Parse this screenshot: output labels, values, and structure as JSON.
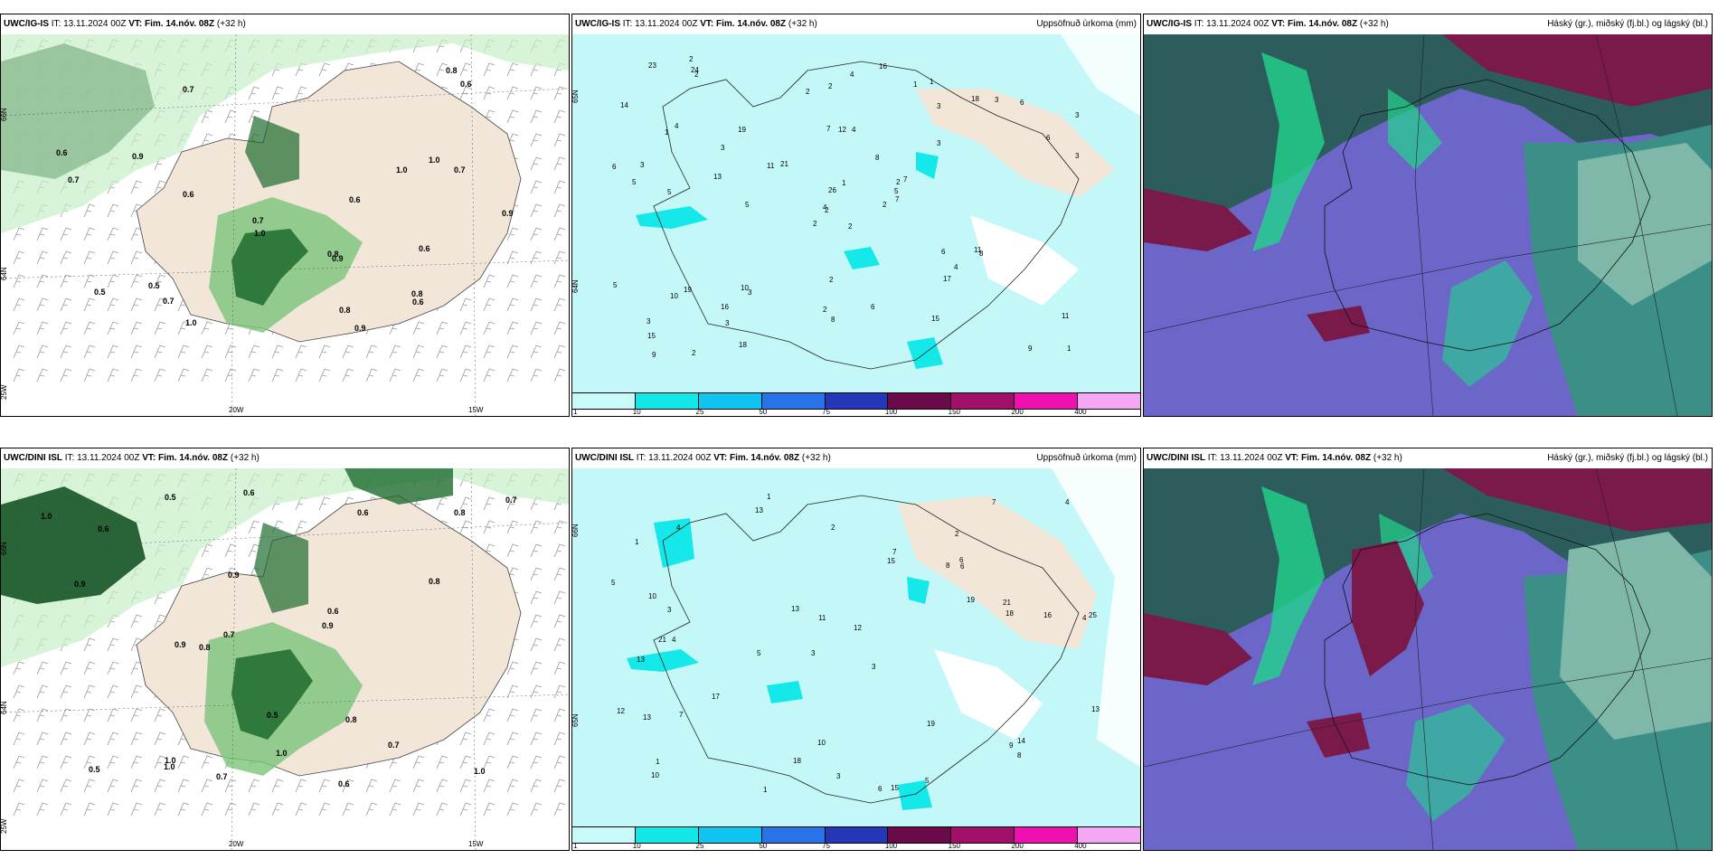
{
  "panels": {
    "tl": {
      "model": "UWC/IG-IS",
      "it_label": "IT:",
      "it": "13.11.2024 00Z",
      "vt_label": "VT:",
      "vt": "Fim. 14.nóv. 08Z",
      "lead": "(+32 h)",
      "right_title": "",
      "lon_labels": [
        "20W",
        "15W"
      ],
      "lat_labels": [
        "66N",
        "64N",
        "25W"
      ],
      "values": [
        "0.9",
        "0.7",
        "0.5",
        "0.9",
        "1.0",
        "0.8",
        "0.9",
        "0.6",
        "1.0",
        "0.7",
        "0.5",
        "0.6",
        "0.7",
        "0.8",
        "1.0",
        "0.8",
        "0.7",
        "0.6",
        "0.6",
        "0.7",
        "0.8",
        "0.9",
        "1.0",
        "0.6",
        "0.6"
      ]
    },
    "tm": {
      "model": "UWC/IG-IS",
      "it_label": "IT:",
      "it": "13.11.2024 00Z",
      "vt_label": "VT:",
      "vt": "Fim. 14.nóv. 08Z",
      "lead": "(+32 h)",
      "right_title": "Uppsöfnuð úrkoma (mm)",
      "lat_labels": [
        "65N",
        "64N"
      ],
      "values": [
        "2",
        "1",
        "2",
        "3",
        "2",
        "3",
        "1",
        "4",
        "3",
        "2",
        "2",
        "1",
        "5",
        "3",
        "2",
        "3",
        "2",
        "7",
        "8",
        "19",
        "21",
        "15",
        "3",
        "12",
        "7",
        "8",
        "4",
        "2",
        "5",
        "6",
        "3",
        "4",
        "2",
        "26",
        "19",
        "18",
        "10",
        "9",
        "11",
        "11",
        "16",
        "11",
        "13",
        "17",
        "18",
        "6",
        "5",
        "9",
        "8",
        "7",
        "10",
        "6",
        "14",
        "4",
        "15",
        "16",
        "24",
        "23",
        "6",
        "6",
        "4",
        "5",
        "3",
        "3",
        "3",
        "2",
        "1",
        "2",
        "1",
        "5",
        "2"
      ],
      "legend_ticks": [
        "1",
        "10",
        "25",
        "50",
        "75",
        "100",
        "150",
        "200",
        "400"
      ]
    },
    "tr": {
      "model": "UWC/IG-IS",
      "it_label": "IT:",
      "it": "13.11.2024 00Z",
      "vt_label": "VT:",
      "vt": "Fim. 14.nóv. 08Z",
      "lead": "(+32 h)",
      "right_title": "Háský (gr.), miðský (fj.bl.) og lágský (bl.)"
    },
    "bl": {
      "model": "UWC/DINI ISL",
      "it_label": "IT:",
      "it": "13.11.2024 00Z",
      "vt_label": "VT:",
      "vt": "Fim. 14.nóv. 08Z",
      "lead": "(+32 h)",
      "right_title": "",
      "lon_labels": [
        "20W",
        "15W"
      ],
      "lat_labels": [
        "66N",
        "64N",
        "25W"
      ],
      "values": [
        "0.7",
        "0.6",
        "1.0",
        "0.7",
        "0.5",
        "0.6",
        "0.9",
        "1.0",
        "0.6",
        "0.9",
        "0.8",
        "1.0",
        "0.7",
        "0.5",
        "0.6",
        "0.9",
        "0.9",
        "1.0",
        "0.8",
        "1.0",
        "0.8",
        "0.7",
        "0.6",
        "0.5",
        "0.8"
      ]
    },
    "bm": {
      "model": "UWC/DINI ISL",
      "it_label": "IT:",
      "it": "13.11.2024 00Z",
      "vt_label": "VT:",
      "vt": "Fim. 14.nóv. 08Z",
      "lead": "(+32 h)",
      "right_title": "Uppsöfnuð úrkoma (mm)",
      "lat_labels": [
        "66N",
        "65N"
      ],
      "values": [
        "1",
        "2",
        "4",
        "3",
        "3",
        "4",
        "1",
        "8",
        "13",
        "15",
        "12",
        "10",
        "13",
        "5",
        "6",
        "15",
        "10",
        "7",
        "19",
        "17",
        "3",
        "21",
        "25",
        "16",
        "12",
        "10",
        "11",
        "18",
        "14",
        "13",
        "9",
        "7",
        "7",
        "13",
        "19",
        "13",
        "21",
        "18",
        "4",
        "2",
        "1",
        "1",
        "5",
        "4",
        "3",
        "6",
        "8",
        "6",
        "5"
      ],
      "legend_ticks": [
        "1",
        "10",
        "25",
        "50",
        "75",
        "100",
        "150",
        "200",
        "400"
      ]
    },
    "br": {
      "model": "UWC/DINI ISL",
      "it_label": "IT:",
      "it": "13.11.2024 00Z",
      "vt_label": "VT:",
      "vt": "Fim. 14.nóv. 08Z",
      "lead": "(+32 h)",
      "right_title": "Háský (gr.), miðský (fj.bl.) og lágský (bl.)"
    }
  },
  "colors": {
    "land": "#f2e6d9",
    "green_light": "#c8f0c8",
    "green_mid": "#7bc47b",
    "green_dark": "#1e6b2e",
    "green_deep": "#0b4a1a",
    "precip_light": "#c4f8f8",
    "precip_cyan": "#14e8e8",
    "cloud_blue": "#6b66c8",
    "cloud_dark": "#2c5c5c",
    "cloud_teal": "#3b8f86",
    "cloud_green": "#22d48c",
    "cloud_red": "#7a1a4a",
    "cloud_pale": "#7fb8a8",
    "legend": [
      "#c8fafa",
      "#12e6e6",
      "#10c4f0",
      "#2a72e8",
      "#2636b8",
      "#6a0a4a",
      "#a0106a",
      "#ee10b0",
      "#f4a8f4"
    ]
  }
}
